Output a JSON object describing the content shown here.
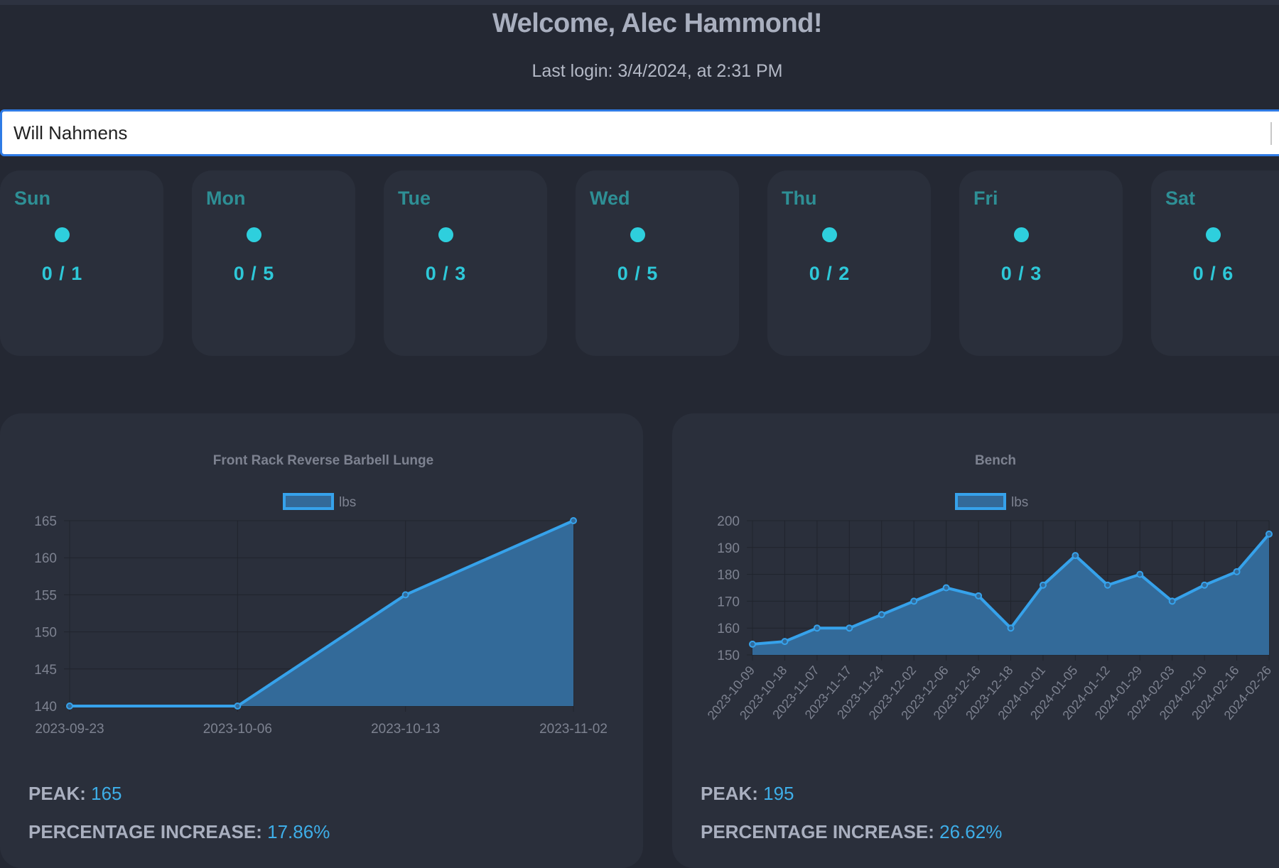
{
  "header": {
    "welcome": "Welcome, Alec Hammond!",
    "last_login": "Last login: 3/4/2024, at 2:31 PM"
  },
  "search": {
    "value": "Will Nahmens",
    "placeholder": ""
  },
  "days": [
    {
      "label": "Sun",
      "count": "0 / 1"
    },
    {
      "label": "Mon",
      "count": "0 / 5"
    },
    {
      "label": "Tue",
      "count": "0 / 3"
    },
    {
      "label": "Wed",
      "count": "0 / 5"
    },
    {
      "label": "Thu",
      "count": "0 / 2"
    },
    {
      "label": "Fri",
      "count": "0 / 3"
    },
    {
      "label": "Sat",
      "count": "0 / 6"
    }
  ],
  "colors": {
    "background": "#242833",
    "panel": "#2a2f3b",
    "accent_line": "#36a2eb",
    "fill": "#336a99",
    "day_label": "#2e8f95",
    "day_value": "#2ecfdd",
    "stat_value": "#3eaee8",
    "input_border": "#2f7be5"
  },
  "stats": [
    {
      "peak_label": "PEAK:",
      "peak_value": "165",
      "pct_label": "PERCENTAGE INCREASE:",
      "pct_value": "17.86%"
    },
    {
      "peak_label": "PEAK:",
      "peak_value": "195",
      "pct_label": "PERCENTAGE INCREASE:",
      "pct_value": "26.62%"
    }
  ],
  "chart_data": [
    {
      "type": "area",
      "title": "Front Rack Reverse Barbell Lunge",
      "legend": [
        "lbs"
      ],
      "legend_position": "top",
      "categories": [
        "2023-09-23",
        "2023-10-06",
        "2023-10-13",
        "2023-11-02"
      ],
      "series": [
        {
          "name": "lbs",
          "values": [
            140,
            140,
            155,
            165
          ]
        }
      ],
      "xlabel": "",
      "ylabel": "",
      "ylim": [
        140,
        165
      ],
      "yticks": [
        140,
        145,
        150,
        155,
        160,
        165
      ],
      "grid": true
    },
    {
      "type": "area",
      "title": "Bench",
      "legend": [
        "lbs"
      ],
      "legend_position": "top",
      "categories": [
        "2023-10-09",
        "2023-10-18",
        "2023-11-07",
        "2023-11-17",
        "2023-11-24",
        "2023-12-02",
        "2023-12-06",
        "2023-12-16",
        "2023-12-18",
        "2024-01-01",
        "2024-01-05",
        "2024-01-12",
        "2024-01-29",
        "2024-02-03",
        "2024-02-10",
        "2024-02-16",
        "2024-02-26"
      ],
      "series": [
        {
          "name": "lbs",
          "values": [
            154,
            155,
            160,
            160,
            165,
            170,
            175,
            172,
            160,
            176,
            187,
            176,
            180,
            170,
            176,
            181,
            195
          ]
        }
      ],
      "xlabel": "",
      "ylabel": "",
      "ylim": [
        150,
        200
      ],
      "yticks": [
        150,
        160,
        170,
        180,
        190,
        200
      ],
      "grid": true
    }
  ]
}
